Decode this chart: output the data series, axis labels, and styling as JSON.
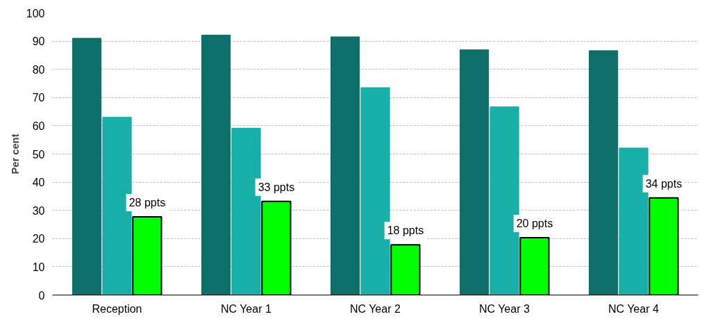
{
  "chart_data": {
    "type": "bar",
    "ylabel": "Per cent",
    "categories": [
      "Reception",
      "NC Year 1",
      "NC Year 2",
      "NC Year 3",
      "NC Year 4"
    ],
    "series": [
      {
        "color": "#0e6e69",
        "values": [
          91.0,
          92.1,
          91.5,
          86.9,
          86.6
        ]
      },
      {
        "color": "#17afa8",
        "values": [
          63.0,
          59.1,
          73.5,
          66.7,
          52.1
        ]
      },
      {
        "color": "#00ff00",
        "values": [
          27.7,
          33.2,
          17.8,
          20.3,
          34.4
        ],
        "value_labels": [
          "28 ppts",
          "33 ppts",
          "18 ppts",
          "20 ppts",
          "34 ppts"
        ]
      }
    ],
    "ylim": [
      0,
      100
    ],
    "yticks": [
      0,
      10,
      20,
      30,
      40,
      50,
      60,
      70,
      80,
      90,
      100
    ],
    "grid": "y"
  }
}
